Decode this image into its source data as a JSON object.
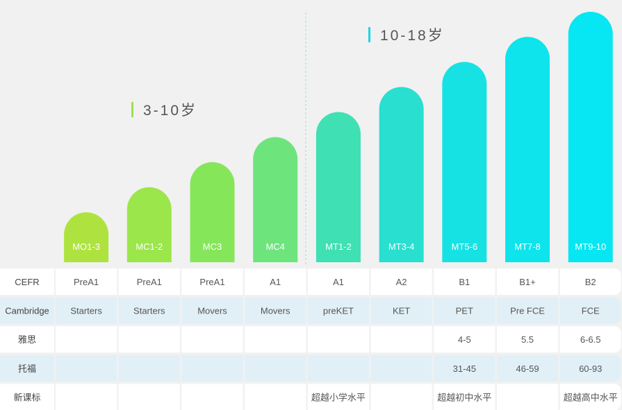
{
  "chart_data": {
    "type": "bar",
    "groups": [
      {
        "label": "3-10岁",
        "accent": "#9be24a"
      },
      {
        "label": "10-18岁",
        "accent": "#1ad6e3"
      }
    ],
    "categories": [
      "MO1-3",
      "MC1-2",
      "MC3",
      "MC4",
      "MT1-2",
      "MT3-4",
      "MT5-6",
      "MT7-8",
      "MT9-10"
    ],
    "values": [
      1,
      2,
      3,
      4,
      5,
      6,
      7,
      8,
      9
    ],
    "ylim": [
      0,
      9
    ],
    "colors": [
      "#aee33f",
      "#9be64b",
      "#86e659",
      "#6ee47d",
      "#3fe0b4",
      "#28dfd0",
      "#17e2e3",
      "#0de4ec",
      "#07e6f3"
    ]
  },
  "table": {
    "rows": [
      {
        "header": "CEFR",
        "cells": [
          "PreA1",
          "PreA1",
          "PreA1",
          "A1",
          "A1",
          "A2",
          "B1",
          "B1+",
          "B2"
        ]
      },
      {
        "header": "Cambridge",
        "cells": [
          "Starters",
          "Starters",
          "Movers",
          "Movers",
          "preKET",
          "KET",
          "PET",
          "Pre FCE",
          "FCE"
        ]
      },
      {
        "header": "雅思",
        "cells": [
          "",
          "",
          "",
          "",
          "",
          "",
          "4-5",
          "5.5",
          "6-6.5"
        ]
      },
      {
        "header": "托福",
        "cells": [
          "",
          "",
          "",
          "",
          "",
          "",
          "31-45",
          "46-59",
          "60-93"
        ]
      },
      {
        "header": "新课标",
        "cells": [
          "",
          "",
          "",
          "",
          "超越小学水平",
          "",
          "超越初中水平",
          "",
          "超越高中水平"
        ]
      }
    ],
    "colors": {
      "white_row": "#ffffff",
      "blue_row": "#e1f0f6"
    }
  }
}
